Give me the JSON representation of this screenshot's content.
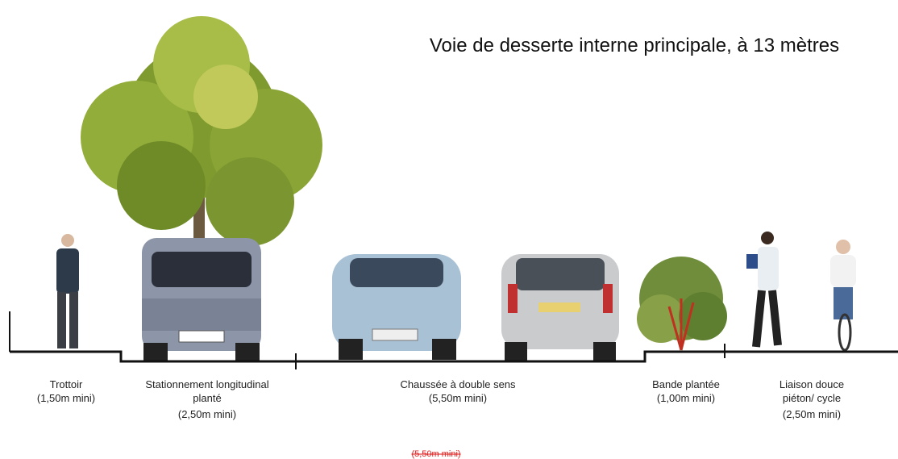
{
  "title": "Voie de desserte interne principale, à 13 mètres",
  "sections": [
    {
      "lines": [
        "Trottoir",
        "(1,50m mini)"
      ]
    },
    {
      "lines": [
        "Stationnement longitudinal",
        "planté",
        "(2,50m mini)"
      ]
    },
    {
      "lines": [
        "Chaussée à double sens",
        "(5,50m mini)"
      ]
    },
    {
      "lines": [
        "Bande plantée",
        "(1,00m mini)"
      ]
    },
    {
      "lines": [
        "Liaison douce",
        "piéton/ cycle",
        "(2,50m mini)"
      ]
    }
  ],
  "note": "(5,50m mini)"
}
